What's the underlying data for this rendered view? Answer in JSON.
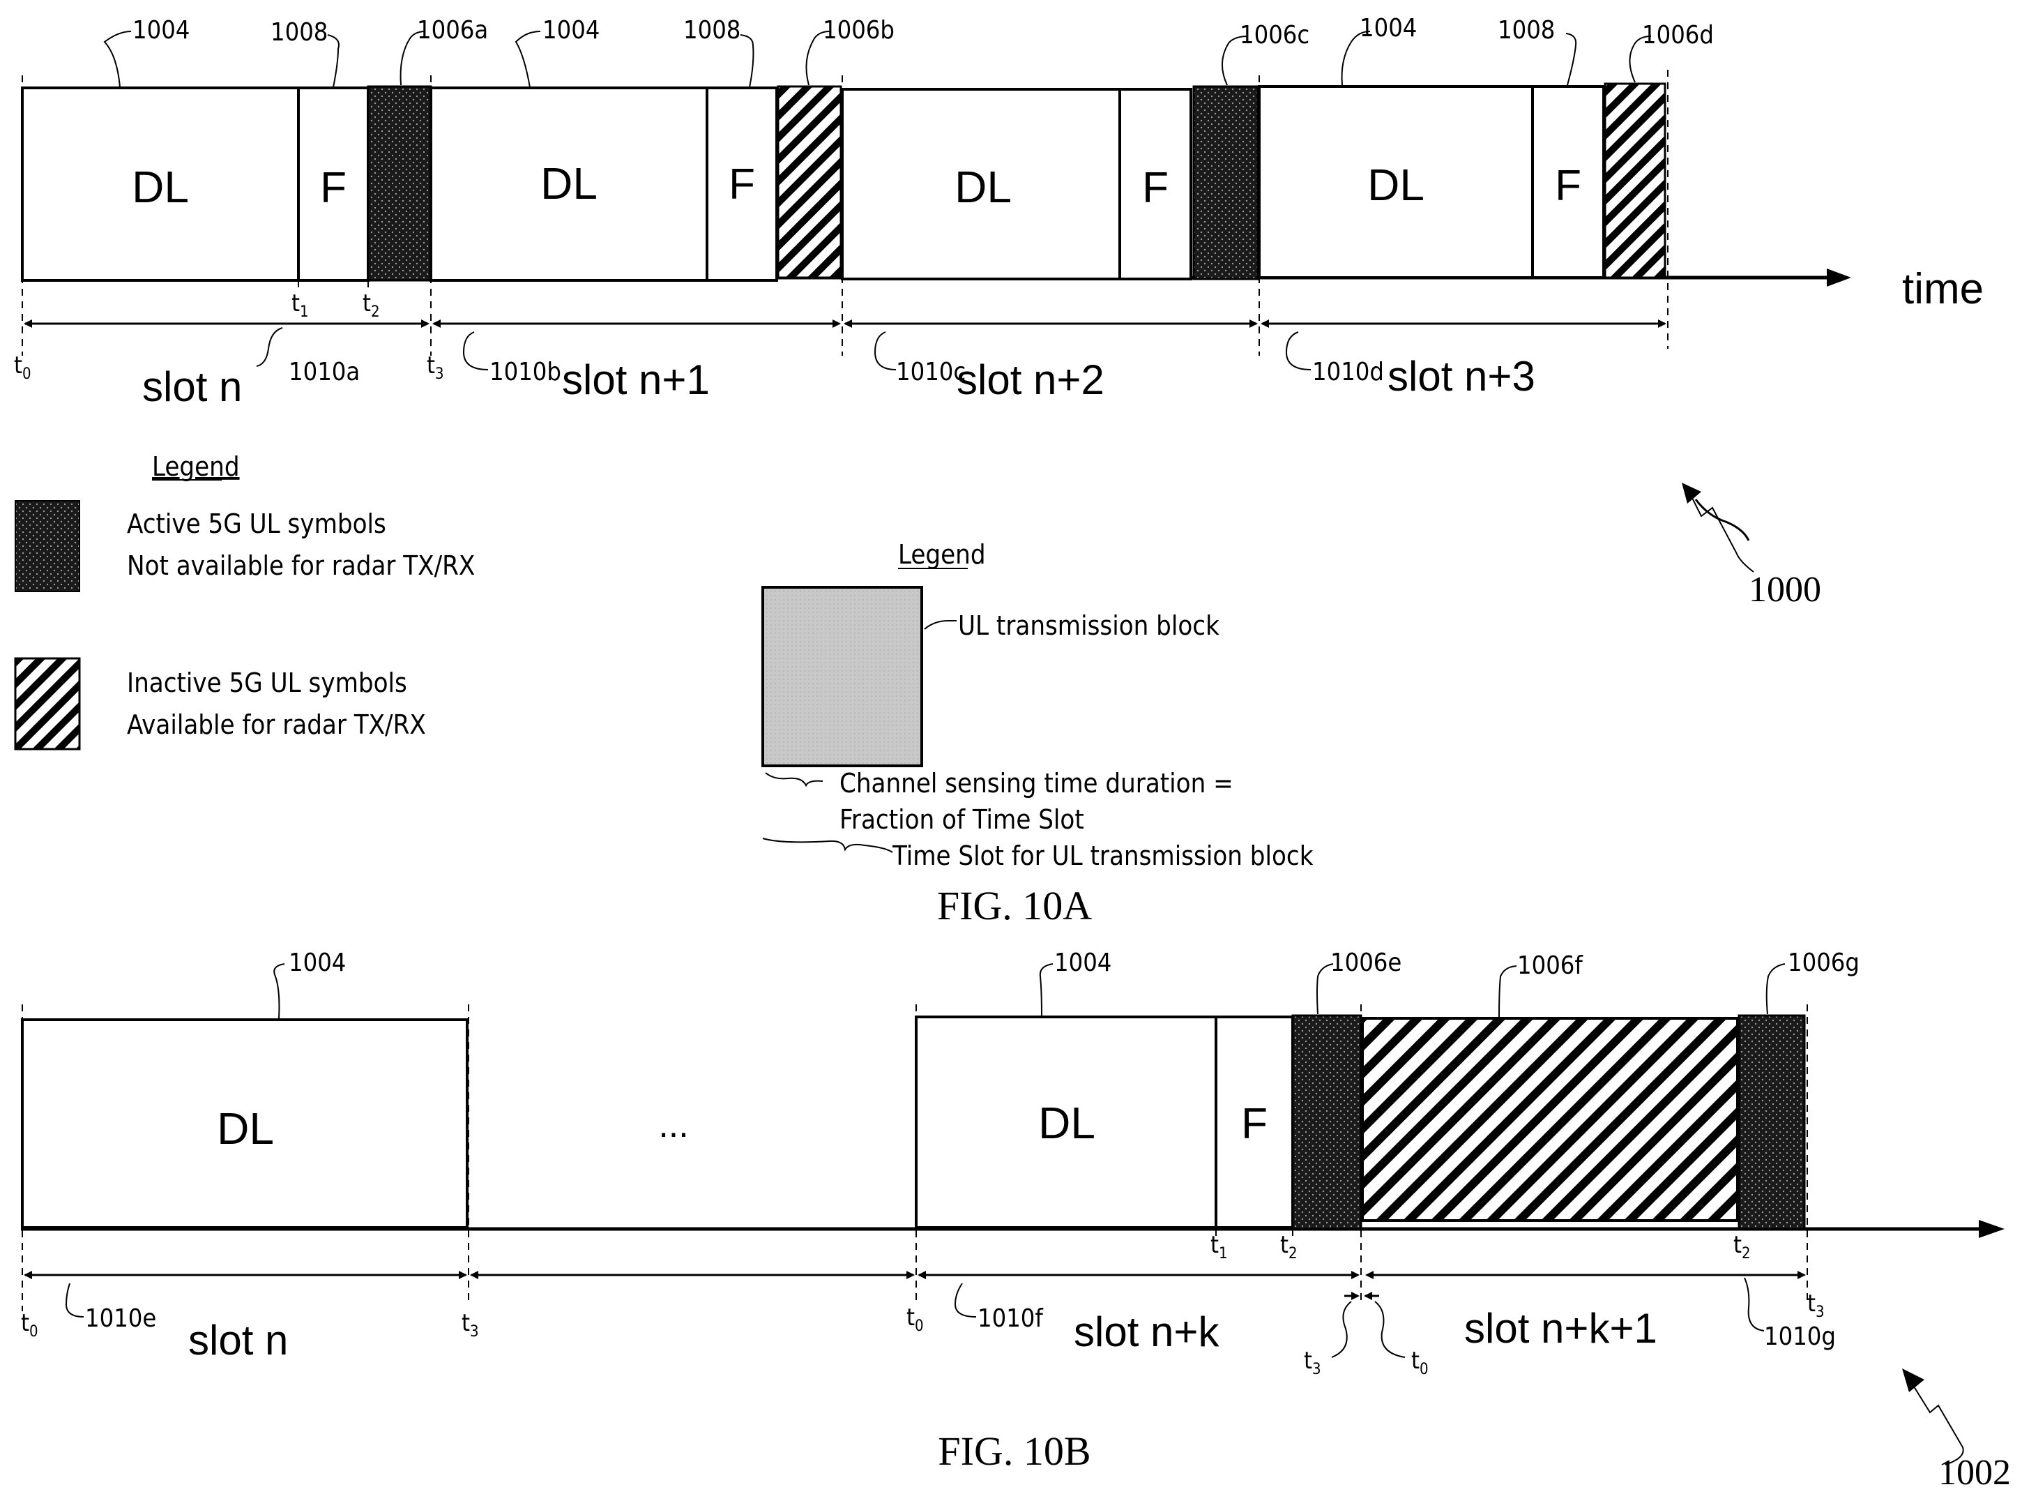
{
  "fig_a": {
    "caption": "FIG. 10A",
    "ref_main": "1000",
    "time_label": "time",
    "block_labels": {
      "dl": "DL",
      "f": "F"
    },
    "refs": {
      "dl_block": "1004",
      "flexible": "1008",
      "ul_a": "1006a",
      "ul_b": "1006b",
      "ul_c": "1006c",
      "ul_d": "1006d"
    },
    "slots": [
      {
        "label": "slot n",
        "ref": "1010a"
      },
      {
        "label": "slot n+1",
        "ref": "1010b"
      },
      {
        "label": "slot n+2",
        "ref": "1010c"
      },
      {
        "label": "slot n+3",
        "ref": "1010d"
      }
    ],
    "time_marks": {
      "t0": "t",
      "t0_sub": "0",
      "t1": "t",
      "t1_sub": "1",
      "t2": "t",
      "t2_sub": "2",
      "t3": "t",
      "t3_sub": "3"
    }
  },
  "legend_left": {
    "title": "Legend",
    "active_line1": "Active 5G UL symbols",
    "active_line2": "Not available for radar TX/RX",
    "inactive_line1": "Inactive 5G UL symbols",
    "inactive_line2": "Available for radar TX/RX"
  },
  "legend_center": {
    "title": "Legend",
    "block_label": "UL transmission block",
    "sensing_line1": "Channel sensing time duration =",
    "sensing_line2": "Fraction of Time Slot",
    "timeslot_label": "Time Slot for UL transmission block"
  },
  "fig_b": {
    "caption": "FIG. 10B",
    "ref_main": "1002",
    "ellipsis": "...",
    "block_labels": {
      "dl": "DL",
      "f": "F"
    },
    "refs": {
      "dl_block_1": "1004",
      "dl_block_2": "1004",
      "ul_e": "1006e",
      "ul_f": "1006f",
      "ul_g": "1006g"
    },
    "slots": [
      {
        "label": "slot n",
        "ref": "1010e"
      },
      {
        "label": "slot n+k",
        "ref": "1010f"
      },
      {
        "label": "slot n+k+1",
        "ref": "1010g"
      }
    ]
  },
  "colors": {
    "active_fill": "#1a1a1a",
    "inactive_stripe": "#000000",
    "ul_block_fill": "#c8c8c8"
  }
}
